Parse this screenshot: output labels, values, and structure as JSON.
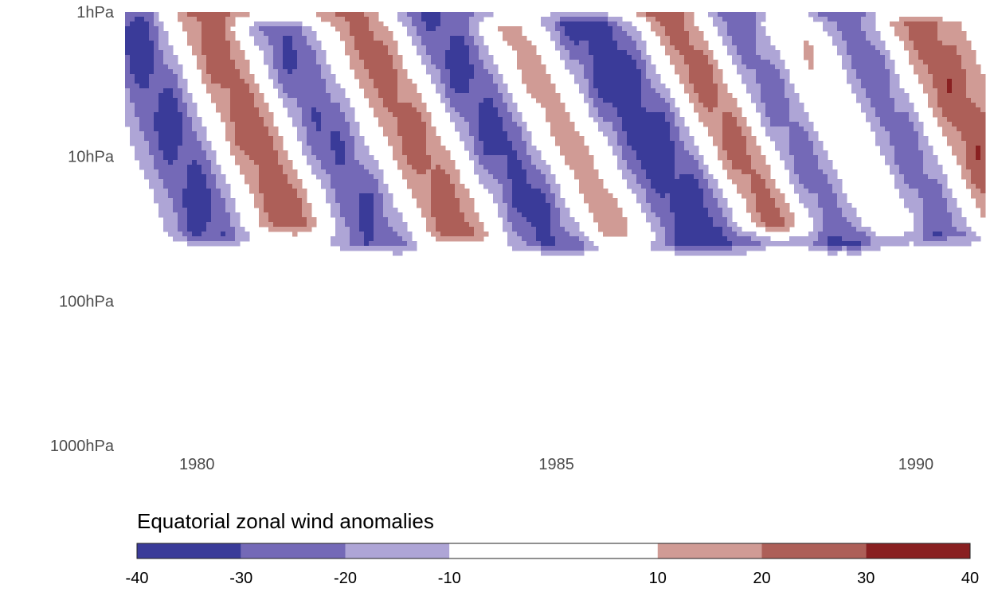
{
  "chart_data": {
    "type": "heatmap",
    "title": "",
    "xlabel": "",
    "ylabel": "",
    "x_axis": {
      "type": "time",
      "range": [
        1979.0,
        1990.92
      ],
      "ticks": [
        1980,
        1985,
        1990
      ],
      "tick_labels": [
        "1980",
        "1985",
        "1990"
      ]
    },
    "y_axis": {
      "type": "log",
      "reversed": true,
      "unit": "hPa",
      "range": [
        1,
        1000
      ],
      "ticks": [
        1,
        10,
        100,
        1000
      ],
      "tick_labels": [
        "1hPa",
        "10hPa",
        "100hPa",
        "1000hPa"
      ]
    },
    "grid": false,
    "legend": {
      "title": "Equatorial zonal wind anomalies",
      "position": "bottom",
      "breaks": [
        -40,
        -30,
        -20,
        -10,
        10,
        20,
        30,
        40
      ],
      "break_labels": [
        "-40",
        "-30",
        "-20",
        "-10",
        "10",
        "20",
        "30",
        "40"
      ],
      "colors": [
        "#3a3b99",
        "#7469b7",
        "#aea5d6",
        "#ffffff",
        "#d09b95",
        "#ad5f58",
        "#892021"
      ]
    },
    "features": [
      {
        "sign": "negative",
        "start": 1979.0,
        "tilt": 0.78,
        "amp": 34,
        "width": 0.55,
        "top": 1,
        "bottom": 35
      },
      {
        "sign": "positive",
        "start": 1980.1,
        "tilt": 0.85,
        "amp": 28,
        "width": 0.55,
        "top": 1,
        "bottom": 30
      },
      {
        "sign": "negative",
        "start": 1981.1,
        "tilt": 0.95,
        "amp": 31,
        "width": 0.6,
        "top": 1.3,
        "bottom": 40
      },
      {
        "sign": "positive",
        "start": 1982.2,
        "tilt": 0.95,
        "amp": 26,
        "width": 0.55,
        "top": 1,
        "bottom": 35
      },
      {
        "sign": "negative",
        "start": 1983.3,
        "tilt": 1.05,
        "amp": 35,
        "width": 0.65,
        "top": 1,
        "bottom": 40
      },
      {
        "sign": "positive",
        "start": 1984.4,
        "tilt": 1.0,
        "amp": 24,
        "width": 0.6,
        "top": 1.3,
        "bottom": 35
      },
      {
        "sign": "negative",
        "start": 1985.4,
        "tilt": 1.1,
        "amp": 38,
        "width": 0.8,
        "top": 1.2,
        "bottom": 40
      },
      {
        "sign": "positive",
        "start": 1986.6,
        "tilt": 1.0,
        "amp": 34,
        "width": 0.55,
        "top": 1,
        "bottom": 30
      },
      {
        "sign": "negative",
        "start": 1987.4,
        "tilt": 1.0,
        "amp": 30,
        "width": 0.65,
        "top": 1,
        "bottom": 40
      },
      {
        "sign": "positive",
        "start": 1988.3,
        "tilt": 0.95,
        "amp": 22,
        "width": 0.5,
        "top": 1.2,
        "bottom": 30
      },
      {
        "sign": "negative",
        "start": 1989.0,
        "tilt": 0.9,
        "amp": 30,
        "width": 0.6,
        "top": 1,
        "bottom": 35
      },
      {
        "sign": "positive",
        "start": 1990.0,
        "tilt": 0.95,
        "amp": 28,
        "width": 0.6,
        "top": 1.2,
        "bottom": 30
      }
    ]
  }
}
